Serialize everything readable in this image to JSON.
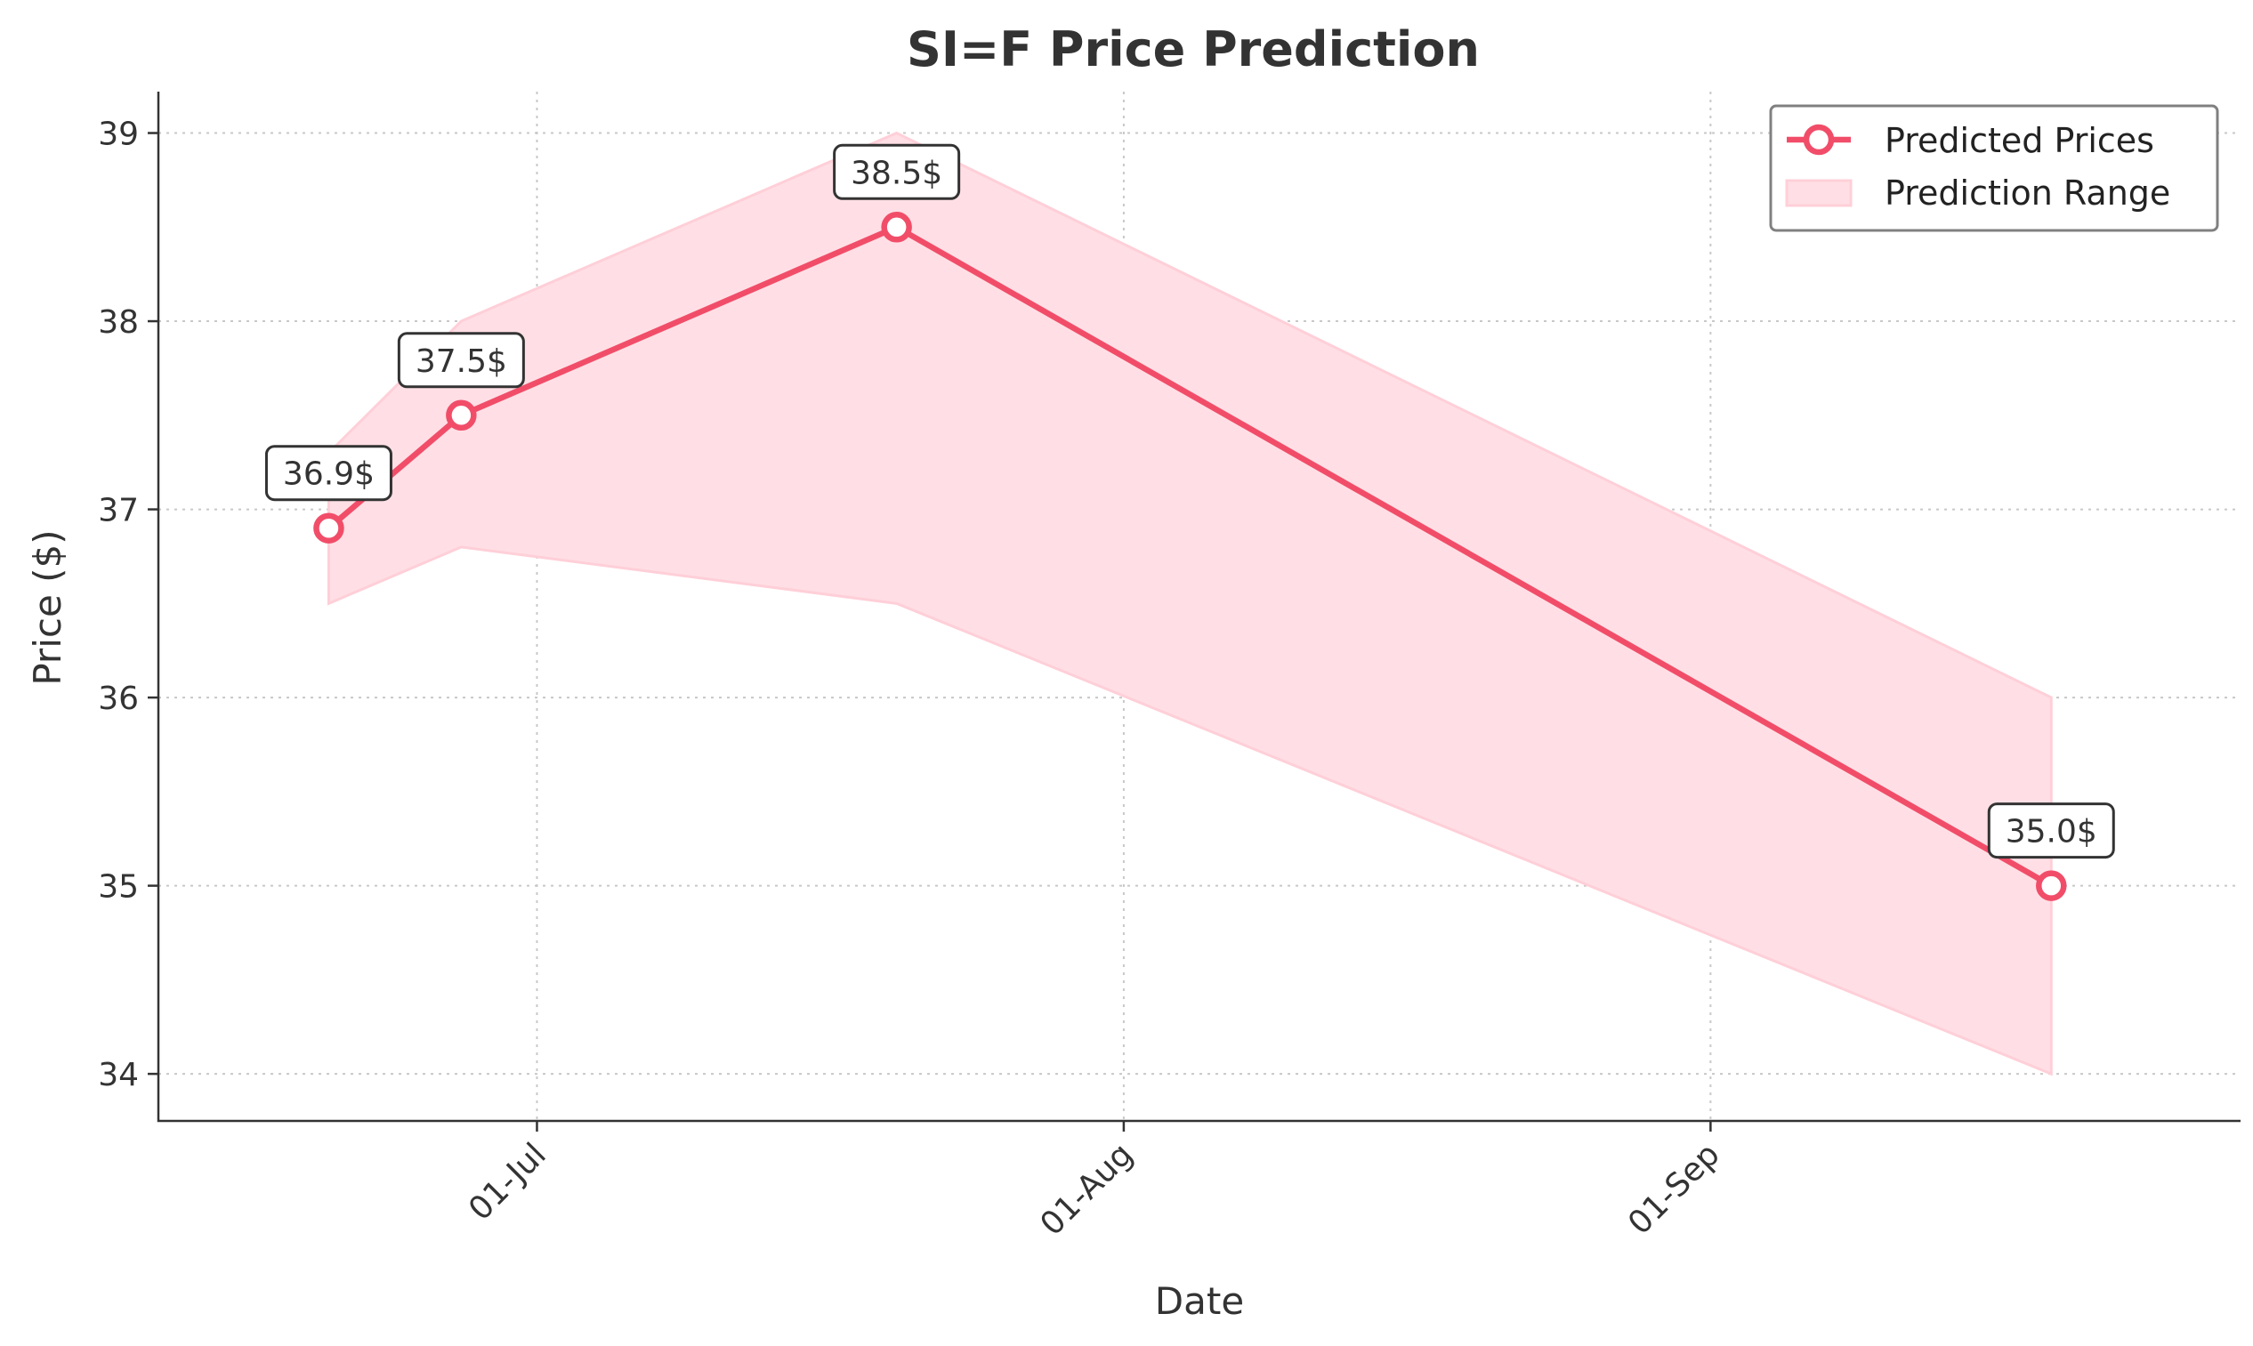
{
  "colors": {
    "line": "#f14d69",
    "band_fill": "#ffdfe5",
    "band_stroke": "#ffcfd8"
  },
  "chart_data": {
    "type": "line",
    "title": "SI=F Price Prediction",
    "xlabel": "Date",
    "ylabel": "Price ($)",
    "x_axis_type": "date",
    "x_tick_format": "DD-Mon",
    "x_ticks": [
      "2024-07-01",
      "2024-08-01",
      "2024-09-01"
    ],
    "x_tick_labels": [
      "01-Jul",
      "01-Aug",
      "01-Sep"
    ],
    "x_tick_rotation_deg": 45,
    "xlim": [
      "2024-06-11",
      "2024-09-29"
    ],
    "ylim": [
      33.75,
      39.22
    ],
    "y_ticks": [
      34,
      35,
      36,
      37,
      38,
      39
    ],
    "y_tick_labels": [
      "34",
      "35",
      "36",
      "37",
      "38",
      "39"
    ],
    "grid": true,
    "grid_style": "dotted",
    "legend_position": "top-right",
    "series": [
      {
        "name": "Predicted Prices",
        "kind": "line-with-markers",
        "x": [
          "2024-06-20",
          "2024-06-27",
          "2024-07-20",
          "2024-09-19"
        ],
        "values": [
          36.9,
          37.5,
          38.5,
          35.0
        ],
        "data_labels": [
          "36.9$",
          "37.5$",
          "38.5$",
          "35.0$"
        ]
      },
      {
        "name": "Prediction Range",
        "kind": "band",
        "x": [
          "2024-06-20",
          "2024-06-27",
          "2024-07-20",
          "2024-09-19"
        ],
        "lower": [
          36.5,
          36.8,
          36.5,
          34.0
        ],
        "upper": [
          37.3,
          38.0,
          39.0,
          36.0
        ]
      }
    ]
  }
}
